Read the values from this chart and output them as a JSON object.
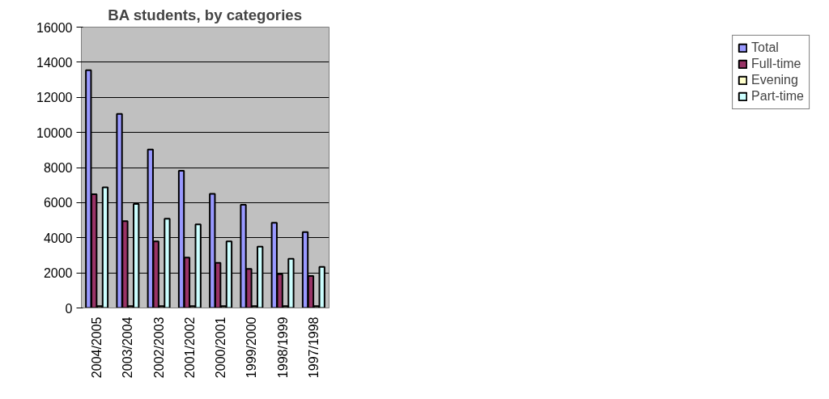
{
  "chart_data": {
    "type": "bar",
    "title": "BA students, by categories",
    "categories": [
      "2004/2005",
      "2003/2004",
      "2002/2003",
      "2001/2002",
      "2000/2001",
      "1999/2000",
      "1998/1999",
      "1997/1998"
    ],
    "series": [
      {
        "name": "Total",
        "color": "#9999ff",
        "values": [
          13550,
          11050,
          9030,
          7820,
          6500,
          5880,
          4850,
          4320
        ]
      },
      {
        "name": "Full-time",
        "color": "#993366",
        "values": [
          6480,
          4940,
          3790,
          2870,
          2570,
          2230,
          1930,
          1820
        ]
      },
      {
        "name": "Evening",
        "color": "#ffffcc",
        "values": [
          100,
          100,
          100,
          100,
          100,
          100,
          100,
          100
        ]
      },
      {
        "name": "Part-time",
        "color": "#ccffff",
        "values": [
          6870,
          5930,
          5080,
          4760,
          3790,
          3490,
          2800,
          2340
        ]
      }
    ],
    "ylim": [
      0,
      16000
    ],
    "yticks": [
      0,
      2000,
      4000,
      6000,
      8000,
      10000,
      12000,
      14000,
      16000
    ],
    "grid": "y",
    "legend": "right"
  }
}
